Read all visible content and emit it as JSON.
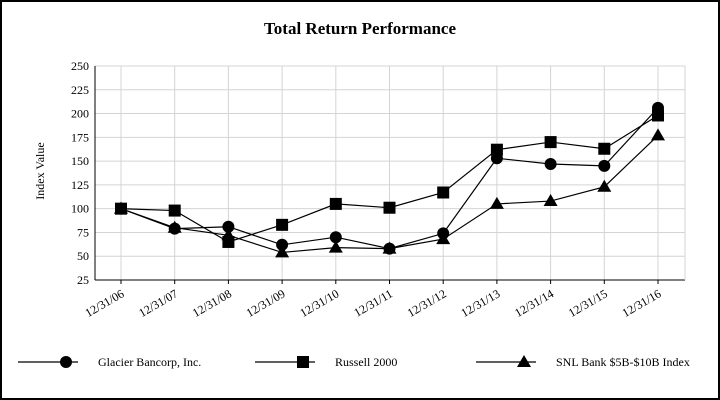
{
  "chart_data": {
    "type": "line",
    "title": "Total Return Performance",
    "xlabel": "",
    "ylabel": "Index Value",
    "categories": [
      "12/31/06",
      "12/31/07",
      "12/31/08",
      "12/31/09",
      "12/31/10",
      "12/31/11",
      "12/31/12",
      "12/31/13",
      "12/31/14",
      "12/31/15",
      "12/31/16"
    ],
    "ylim": [
      25,
      250
    ],
    "yticks": [
      25,
      50,
      75,
      100,
      125,
      150,
      175,
      200,
      225,
      250
    ],
    "grid": true,
    "legend_position": "bottom",
    "series": [
      {
        "name": "Glacier Bancorp, Inc.",
        "marker": "circle",
        "values": [
          100,
          79,
          81,
          62,
          70,
          58,
          74,
          153,
          147,
          145,
          206
        ]
      },
      {
        "name": "Russell 2000",
        "marker": "square",
        "values": [
          100,
          98,
          65,
          83,
          105,
          101,
          117,
          162,
          170,
          163,
          198
        ]
      },
      {
        "name": "SNL Bank $5B-$10B Index",
        "marker": "triangle",
        "values": [
          100,
          80,
          72,
          54,
          59,
          58,
          68,
          105,
          108,
          123,
          177
        ]
      }
    ]
  }
}
